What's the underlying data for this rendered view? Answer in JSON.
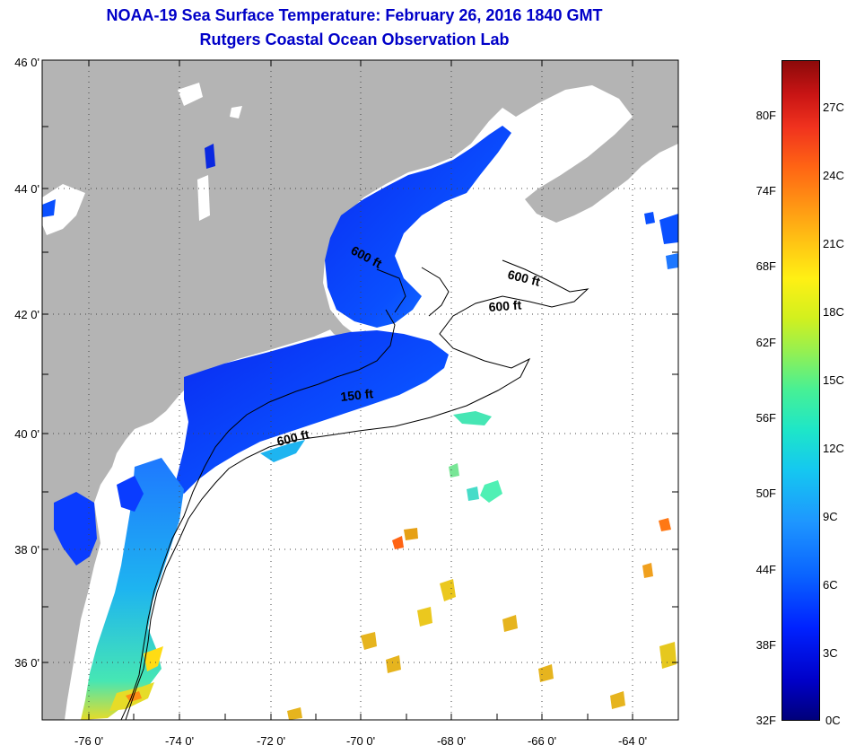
{
  "title": {
    "line1": "NOAA-19 Sea Surface Temperature:  February 26, 2016 1840 GMT",
    "line2": "Rutgers Coastal Ocean Observation Lab"
  },
  "latitude_labels": [
    "46 0'",
    "44 0'",
    "42 0'",
    "40 0'",
    "38 0'",
    "36 0'"
  ],
  "longitude_labels": [
    "-76 0'",
    "-74 0'",
    "-72 0'",
    "-70 0'",
    "-68 0'",
    "-66 0'",
    "-64 0'"
  ],
  "contour_labels": [
    "600 ft",
    "600 ft",
    "600 ft",
    "150 ft",
    "600 ft"
  ],
  "colorbar": {
    "fahrenheit_labels": [
      "80F",
      "74F",
      "68F",
      "62F",
      "56F",
      "50F",
      "44F",
      "38F",
      "32F"
    ],
    "celsius_labels": [
      "27C",
      "24C",
      "21C",
      "18C",
      "15C",
      "12C",
      "9C",
      "6C",
      "3C",
      "0C"
    ]
  },
  "colors": {
    "land": "#b4b4b4",
    "cloud": "#ffffff",
    "title": "#0000c8",
    "cold_water": "#0a3cff",
    "warm_water": "#e6b41e"
  }
}
